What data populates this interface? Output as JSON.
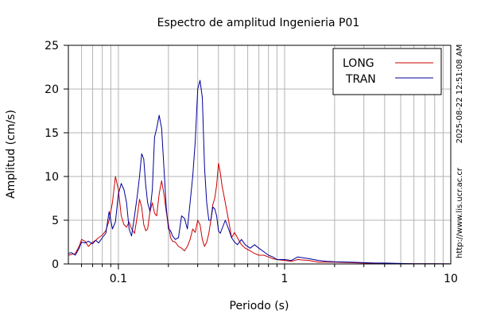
{
  "chart_data": {
    "type": "line",
    "title": "Espectro de amplitud Ingenieria P01",
    "xlabel": "Periodo (s)",
    "ylabel": "Amplitud (cm/s)",
    "x_scale": "log",
    "xlim": [
      0.05,
      10
    ],
    "ylim": [
      0,
      25
    ],
    "x_ticks": [
      0.1,
      1,
      10
    ],
    "x_tick_labels": [
      "0.1",
      "1",
      "10"
    ],
    "y_ticks": [
      0,
      5,
      10,
      15,
      20,
      25
    ],
    "y_tick_labels": [
      "0",
      "5",
      "10",
      "15",
      "20",
      "25"
    ],
    "grid": true,
    "legend_position": "top-right",
    "side_labels": [
      "2025-08-22 12:51:08 AM",
      "http://www.lis.ucr.ac.cr"
    ],
    "series": [
      {
        "name": "LONG",
        "color": "#cc0000",
        "x": [
          0.05,
          0.055,
          0.058,
          0.06,
          0.063,
          0.066,
          0.07,
          0.073,
          0.076,
          0.08,
          0.084,
          0.088,
          0.092,
          0.096,
          0.1,
          0.104,
          0.108,
          0.112,
          0.116,
          0.12,
          0.125,
          0.13,
          0.134,
          0.138,
          0.142,
          0.146,
          0.15,
          0.155,
          0.16,
          0.165,
          0.17,
          0.176,
          0.182,
          0.188,
          0.194,
          0.2,
          0.206,
          0.212,
          0.22,
          0.23,
          0.24,
          0.25,
          0.26,
          0.27,
          0.28,
          0.29,
          0.3,
          0.31,
          0.32,
          0.33,
          0.34,
          0.35,
          0.36,
          0.37,
          0.38,
          0.39,
          0.4,
          0.41,
          0.42,
          0.44,
          0.46,
          0.48,
          0.5,
          0.52,
          0.55,
          0.58,
          0.62,
          0.66,
          0.7,
          0.75,
          0.8,
          0.85,
          0.9,
          1.0,
          1.1,
          1.2,
          1.4,
          1.6,
          1.8,
          2.0,
          2.5,
          3.0,
          3.5,
          4.0,
          5.0,
          6.0,
          8.0,
          10.0
        ],
        "y": [
          1.0,
          1.2,
          2.0,
          2.8,
          2.6,
          2.0,
          2.5,
          2.7,
          3.0,
          3.3,
          3.8,
          5.0,
          7.0,
          10.0,
          8.5,
          5.5,
          4.5,
          4.2,
          4.8,
          4.0,
          3.5,
          5.5,
          7.4,
          6.5,
          4.5,
          3.8,
          4.0,
          6.0,
          7.0,
          5.8,
          5.5,
          8.0,
          9.5,
          8.0,
          6.0,
          4.5,
          3.0,
          2.6,
          2.5,
          2.0,
          1.8,
          1.5,
          2.0,
          2.8,
          4.0,
          3.6,
          5.0,
          4.5,
          2.8,
          2.0,
          2.5,
          3.5,
          5.0,
          6.8,
          7.5,
          9.0,
          11.5,
          10.5,
          9.0,
          7.0,
          5.0,
          3.0,
          3.6,
          3.0,
          2.2,
          1.8,
          1.5,
          1.2,
          1.0,
          1.0,
          0.8,
          0.6,
          0.5,
          0.4,
          0.3,
          0.5,
          0.4,
          0.2,
          0.2,
          0.2,
          0.15,
          0.1,
          0.05,
          0.05,
          0.04,
          0.02,
          0.02,
          0.01
        ]
      },
      {
        "name": "TRAN",
        "color": "#000099",
        "x": [
          0.05,
          0.052,
          0.055,
          0.058,
          0.06,
          0.063,
          0.066,
          0.07,
          0.073,
          0.076,
          0.08,
          0.084,
          0.088,
          0.092,
          0.096,
          0.1,
          0.104,
          0.108,
          0.112,
          0.116,
          0.12,
          0.125,
          0.13,
          0.134,
          0.138,
          0.142,
          0.146,
          0.15,
          0.155,
          0.16,
          0.165,
          0.17,
          0.176,
          0.182,
          0.188,
          0.194,
          0.2,
          0.206,
          0.212,
          0.22,
          0.23,
          0.24,
          0.25,
          0.26,
          0.27,
          0.28,
          0.29,
          0.3,
          0.31,
          0.32,
          0.33,
          0.34,
          0.35,
          0.36,
          0.37,
          0.38,
          0.39,
          0.4,
          0.41,
          0.42,
          0.44,
          0.46,
          0.48,
          0.5,
          0.52,
          0.55,
          0.58,
          0.62,
          0.66,
          0.7,
          0.75,
          0.8,
          0.85,
          0.9,
          1.0,
          1.1,
          1.2,
          1.4,
          1.6,
          1.8,
          2.0,
          2.5,
          3.0,
          3.5,
          4.0,
          5.0,
          6.0,
          8.0,
          10.0
        ],
        "y": [
          1.2,
          1.3,
          1.0,
          1.8,
          2.5,
          2.4,
          2.6,
          2.3,
          2.7,
          2.4,
          3.0,
          3.5,
          6.0,
          4.0,
          4.8,
          8.0,
          9.2,
          8.5,
          7.0,
          4.0,
          3.2,
          5.5,
          7.8,
          10.0,
          12.6,
          12.0,
          9.0,
          7.0,
          6.0,
          8.5,
          14.5,
          15.5,
          17.0,
          15.5,
          11.0,
          6.5,
          4.0,
          3.8,
          3.2,
          2.8,
          3.0,
          5.5,
          5.2,
          4.0,
          7.0,
          10.0,
          14.0,
          20.0,
          21.0,
          19.0,
          11.0,
          7.0,
          5.0,
          5.0,
          6.5,
          6.3,
          5.5,
          3.8,
          3.5,
          4.0,
          5.0,
          4.0,
          3.0,
          2.5,
          2.2,
          2.8,
          2.2,
          1.8,
          2.2,
          1.8,
          1.4,
          1.0,
          0.8,
          0.5,
          0.5,
          0.4,
          0.8,
          0.6,
          0.4,
          0.3,
          0.25,
          0.2,
          0.15,
          0.1,
          0.1,
          0.05,
          0.03,
          0.02,
          0.01
        ]
      }
    ]
  }
}
